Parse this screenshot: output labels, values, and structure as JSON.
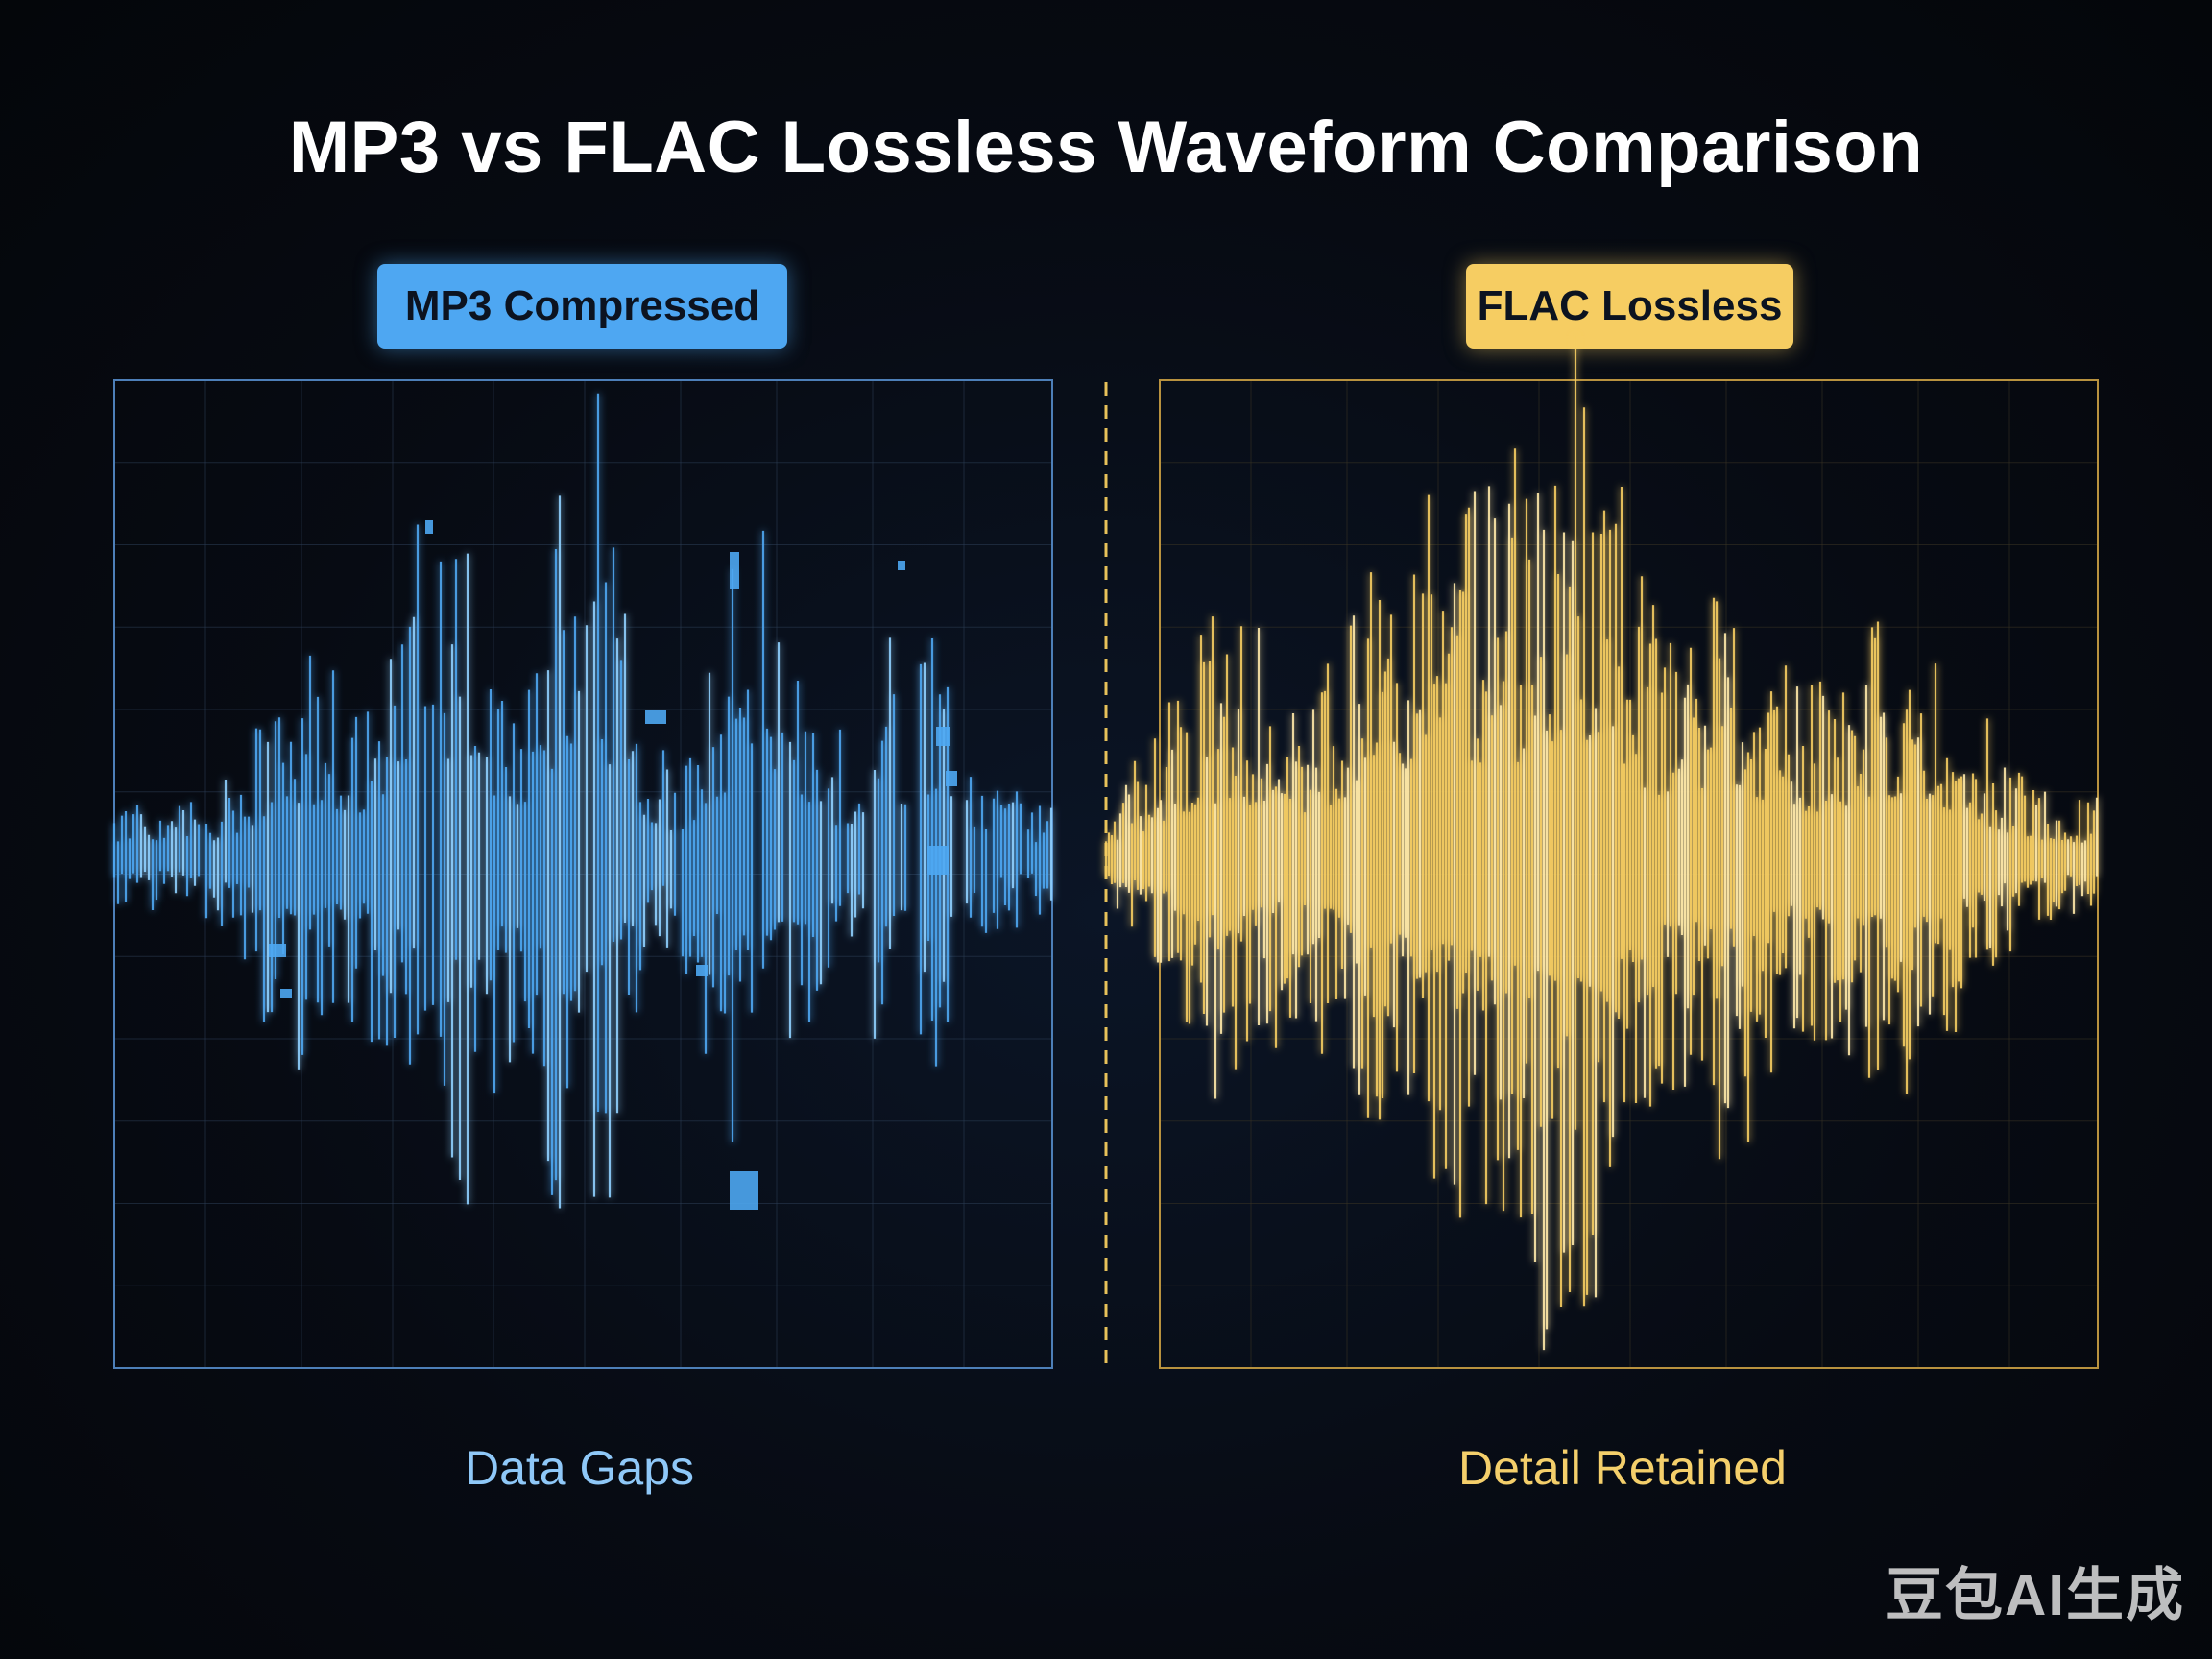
{
  "title": "MP3 vs FLAC Lossless Waveform Comparison",
  "panels": {
    "mp3": {
      "label": "MP3 Compressed",
      "caption": "Data Gaps",
      "color": "#4ea7f2",
      "glow": "#8fd0ff"
    },
    "flac": {
      "label": "FLAC Lossless",
      "caption": "Detail Retained",
      "color": "#f6cd62",
      "glow": "#ffe9a8"
    }
  },
  "divider_color": "#e8c25a",
  "watermark": "豆包AI生成"
}
